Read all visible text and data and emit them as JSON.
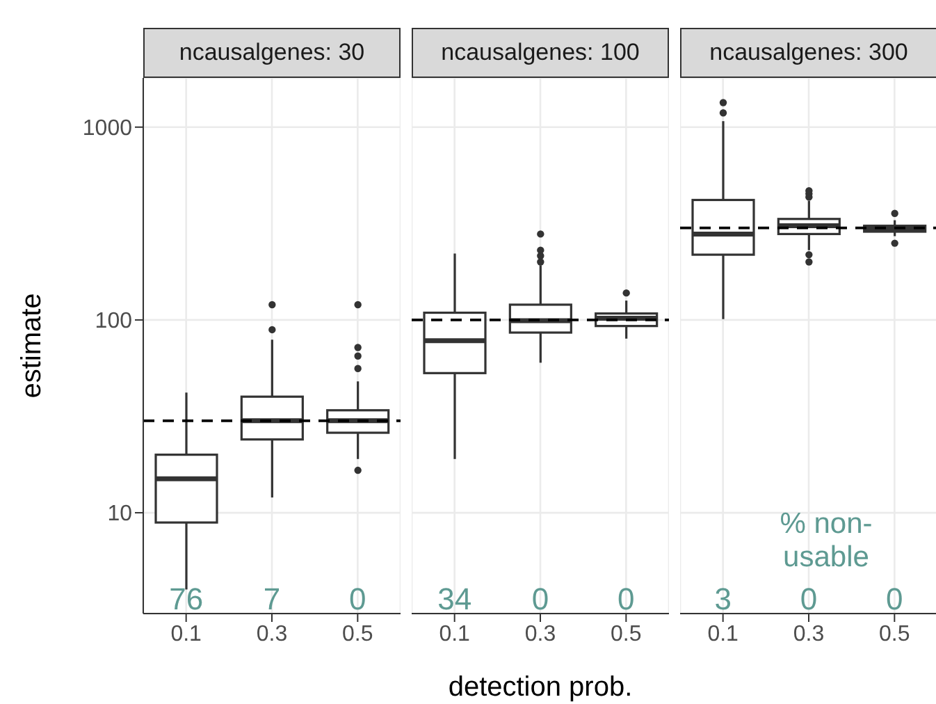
{
  "chart_data": [
    {
      "type": "box",
      "title": "ncausalgenes: 30",
      "ylabel": "estimate",
      "categories": [
        "0.1",
        "0.3",
        "0.5"
      ],
      "log": "y",
      "ylim": [
        3,
        1800
      ],
      "yticks": [
        10,
        100,
        1000
      ],
      "grid": true,
      "boxes": [
        {
          "low": 4,
          "q1": 8.9,
          "median": 15,
          "q3": 20,
          "high": 42
        },
        {
          "low": 12,
          "q1": 24,
          "median": 30,
          "q3": 40,
          "high": 79,
          "outliers": [
            89,
            120
          ]
        },
        {
          "low": 19,
          "q1": 26,
          "median": 30,
          "q3": 34,
          "high": 48,
          "outliers": [
            56,
            65,
            72,
            120,
            16.6
          ]
        }
      ],
      "ref_lines": [
        {
          "axis": "y",
          "value": 30,
          "line_style": "dashed"
        }
      ],
      "annotations": [
        "76",
        "7",
        "0"
      ]
    },
    {
      "type": "box",
      "title": "ncausalgenes: 100",
      "xlabel": "detection prob.",
      "categories": [
        "0.1",
        "0.3",
        "0.5"
      ],
      "log": "y",
      "ylim": [
        3,
        1800
      ],
      "yticks": [
        10,
        100,
        1000
      ],
      "grid": true,
      "tick_labels": "x",
      "boxes": [
        {
          "low": 19,
          "q1": 53,
          "median": 78,
          "q3": 109,
          "high": 221
        },
        {
          "low": 60,
          "q1": 86,
          "median": 99,
          "q3": 120,
          "high": 192,
          "outliers": [
            200,
            215,
            230,
            279
          ]
        },
        {
          "low": 80,
          "q1": 93,
          "median": 102,
          "q3": 108,
          "high": 126,
          "outliers": [
            138
          ]
        }
      ],
      "ref_lines": [
        {
          "axis": "y",
          "value": 100,
          "line_style": "dashed"
        }
      ],
      "annotations": [
        "34",
        "0",
        "0"
      ]
    },
    {
      "type": "box",
      "title": "ncausalgenes: 300",
      "categories": [
        "0.1",
        "0.3",
        "0.5"
      ],
      "log": "y",
      "ylim": [
        3,
        1800
      ],
      "yticks": [
        10,
        100,
        1000
      ],
      "grid": true,
      "tick_labels": "x",
      "boxes": [
        {
          "low": 101,
          "q1": 218,
          "median": 279,
          "q3": 419,
          "high": 1074,
          "outliers": [
            1186,
            1340
          ]
        },
        {
          "low": 230,
          "q1": 279,
          "median": 308,
          "q3": 334,
          "high": 415,
          "outliers": [
            434,
            451,
            468,
            218,
            200
          ]
        },
        {
          "low": 272,
          "q1": 287,
          "median": 298,
          "q3": 308,
          "high": 329,
          "outliers": [
            357,
            250
          ]
        }
      ],
      "ref_lines": [
        {
          "axis": "y",
          "value": 300,
          "line_style": "dashed"
        }
      ],
      "annotations": [
        "3",
        "0",
        "0",
        "% non-usable"
      ]
    }
  ]
}
